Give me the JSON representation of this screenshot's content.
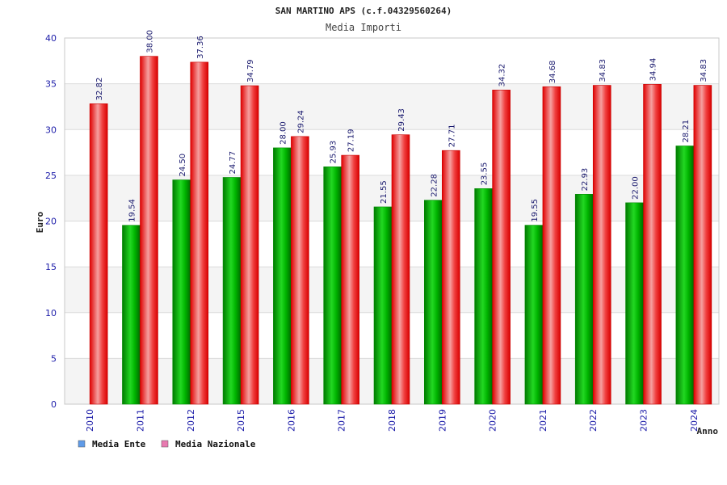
{
  "chart_data": {
    "type": "bar",
    "title": "SAN MARTINO APS (c.f.04329560264)",
    "subtitle": "Media Importi",
    "xlabel": "Anno",
    "ylabel": "Euro",
    "ylim": [
      0,
      40
    ],
    "yticks": [
      0,
      5,
      10,
      15,
      20,
      25,
      30,
      35,
      40
    ],
    "grid": true,
    "legend_position": "bottom-left",
    "categories": [
      "2010",
      "2011",
      "2012",
      "2015",
      "2016",
      "2017",
      "2018",
      "2019",
      "2020",
      "2021",
      "2022",
      "2023",
      "2024"
    ],
    "series": [
      {
        "name": "Media Ente",
        "color": "#00b000",
        "legend_color": "#5f9be8",
        "values": [
          null,
          19.54,
          24.5,
          24.77,
          28.0,
          25.93,
          21.55,
          22.28,
          23.55,
          19.55,
          22.93,
          22.0,
          28.21
        ],
        "labels": [
          "",
          "19.54",
          "24.50",
          "24.77",
          "28.00",
          "25.93",
          "21.55",
          "22.28",
          "23.55",
          "19.55",
          "22.93",
          "22.00",
          "28.21"
        ]
      },
      {
        "name": "Media Nazionale",
        "color": "#ee1111",
        "legend_color": "#e87ab0",
        "values": [
          32.82,
          38.0,
          37.36,
          34.79,
          29.24,
          27.19,
          29.43,
          27.71,
          34.32,
          34.68,
          34.83,
          34.94,
          34.83
        ],
        "labels": [
          "32.82",
          "38.00",
          "37.36",
          "34.79",
          "29.24",
          "27.19",
          "29.43",
          "27.71",
          "34.32",
          "34.68",
          "34.83",
          "34.94",
          "34.83"
        ]
      }
    ]
  }
}
